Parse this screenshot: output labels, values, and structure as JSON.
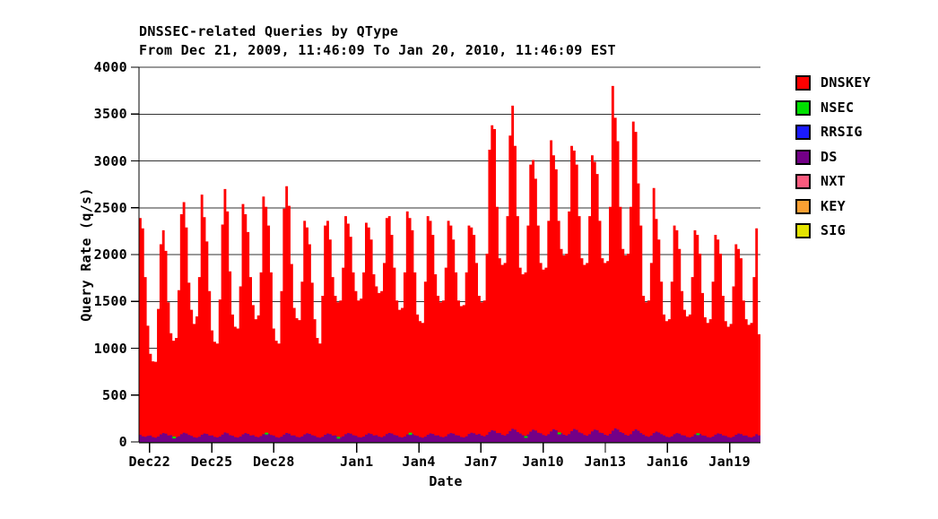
{
  "chart_data": {
    "type": "area",
    "stacked": true,
    "title": "DNSSEC-related Queries by QType",
    "subtitle": "From Dec 21, 2009, 11:46:09 To Jan 20, 2010, 11:46:09 EST",
    "xlabel": "Date",
    "ylabel": "Query Rate (q/s)",
    "ylim": [
      0,
      4000
    ],
    "y_ticks": [
      0,
      500,
      1000,
      1500,
      2000,
      2500,
      3000,
      3500,
      4000
    ],
    "grid": true,
    "grid_color": "#333333",
    "axis_color": "#000000",
    "legend_position": "right",
    "total_days": 30,
    "sample_interval_hours": 3,
    "x_ticks": [
      {
        "label": "Dec22",
        "day_offset": 0.51
      },
      {
        "label": "Dec25",
        "day_offset": 3.51
      },
      {
        "label": "Dec28",
        "day_offset": 6.51
      },
      {
        "label": "Jan1",
        "day_offset": 10.51
      },
      {
        "label": "Jan4",
        "day_offset": 13.51
      },
      {
        "label": "Jan7",
        "day_offset": 16.51
      },
      {
        "label": "Jan10",
        "day_offset": 19.51
      },
      {
        "label": "Jan13",
        "day_offset": 22.51
      },
      {
        "label": "Jan16",
        "day_offset": 25.51
      },
      {
        "label": "Jan19",
        "day_offset": 28.51
      }
    ],
    "series": [
      {
        "name": "DNSKEY",
        "color": "#ff0000",
        "approx_top_q_s": [
          2390,
          2280,
          1760,
          1240,
          940,
          860,
          855,
          1420,
          2110,
          2260,
          2040,
          1490,
          1160,
          1080,
          1110,
          1620,
          2430,
          2560,
          2290,
          1700,
          1410,
          1260,
          1340,
          1760,
          2640,
          2400,
          2140,
          1610,
          1190,
          1070,
          1050,
          1520,
          2320,
          2700,
          2460,
          1820,
          1360,
          1230,
          1210,
          1660,
          2540,
          2430,
          2240,
          1760,
          1460,
          1310,
          1350,
          1810,
          2620,
          2510,
          2310,
          1810,
          1210,
          1080,
          1050,
          1610,
          2490,
          2730,
          2520,
          1900,
          1430,
          1320,
          1300,
          1710,
          2360,
          2290,
          2110,
          1700,
          1310,
          1110,
          1050,
          1560,
          2310,
          2360,
          2160,
          1760,
          1560,
          1490,
          1510,
          1860,
          2410,
          2330,
          2190,
          1810,
          1610,
          1510,
          1530,
          1810,
          2340,
          2290,
          2160,
          1790,
          1660,
          1590,
          1610,
          1910,
          2390,
          2410,
          2210,
          1860,
          1510,
          1410,
          1430,
          1810,
          2460,
          2390,
          2260,
          1810,
          1360,
          1290,
          1270,
          1710,
          2410,
          2360,
          2210,
          1790,
          1560,
          1490,
          1510,
          1860,
          2360,
          2310,
          2160,
          1810,
          1510,
          1450,
          1460,
          1810,
          2310,
          2290,
          2210,
          1910,
          1560,
          1490,
          1510,
          2010,
          3120,
          3380,
          3340,
          2510,
          1960,
          1890,
          1910,
          2410,
          3270,
          3590,
          3160,
          2410,
          1860,
          1790,
          1810,
          2310,
          2960,
          3010,
          2810,
          2310,
          1910,
          1840,
          1860,
          2360,
          3220,
          3060,
          2910,
          2360,
          2060,
          1990,
          2010,
          2460,
          3160,
          3110,
          2960,
          2410,
          1960,
          1890,
          1910,
          2410,
          3060,
          2990,
          2860,
          2360,
          1960,
          1910,
          1930,
          2510,
          3800,
          3460,
          3210,
          2510,
          2060,
          1990,
          2010,
          2510,
          3420,
          3310,
          2760,
          2310,
          1560,
          1490,
          1510,
          1910,
          2710,
          2380,
          2160,
          1710,
          1360,
          1290,
          1310,
          1710,
          2310,
          2260,
          2060,
          1610,
          1410,
          1340,
          1360,
          1760,
          2260,
          2210,
          2010,
          1590,
          1330,
          1270,
          1310,
          1710,
          2210,
          2160,
          2010,
          1560,
          1290,
          1230,
          1260,
          1660,
          2110,
          2060,
          1960,
          1510,
          1310,
          1250,
          1270,
          1760,
          2280,
          1150
        ]
      },
      {
        "name": "NSEC",
        "color": "#00e000",
        "sparse_spikes": [
          [
            13,
            22
          ],
          [
            49,
            20
          ],
          [
            77,
            18
          ],
          [
            105,
            24
          ],
          [
            150,
            16
          ],
          [
            163,
            20
          ],
          [
            217,
            18
          ]
        ]
      },
      {
        "name": "RRSIG",
        "color": "#1a1aff",
        "approx_top_q_s": []
      },
      {
        "name": "DS",
        "color": "#730087",
        "approx_top_q_s": [
          75,
          60,
          55,
          65,
          68,
          52,
          46,
          58,
          80,
          95,
          88,
          70,
          72,
          55,
          50,
          60,
          82,
          98,
          90,
          74,
          65,
          50,
          45,
          55,
          76,
          90,
          85,
          68,
          70,
          54,
          48,
          58,
          78,
          100,
          92,
          72,
          66,
          52,
          47,
          57,
          80,
          94,
          86,
          70,
          72,
          56,
          50,
          62,
          84,
          98,
          90,
          74,
          68,
          52,
          46,
          56,
          78,
          96,
          88,
          70,
          70,
          54,
          49,
          59,
          80,
          92,
          86,
          72,
          64,
          50,
          45,
          55,
          76,
          90,
          84,
          68,
          70,
          55,
          50,
          60,
          82,
          95,
          88,
          72,
          66,
          52,
          48,
          58,
          78,
          92,
          85,
          70,
          72,
          56,
          50,
          62,
          84,
          96,
          90,
          74,
          68,
          53,
          48,
          58,
          80,
          94,
          87,
          71,
          65,
          51,
          46,
          56,
          77,
          91,
          85,
          69,
          70,
          55,
          50,
          60,
          82,
          95,
          88,
          72,
          68,
          53,
          48,
          60,
          85,
          98,
          92,
          78,
          85,
          68,
          60,
          75,
          105,
          125,
          118,
          95,
          95,
          75,
          68,
          85,
          115,
          140,
          130,
          105,
          90,
          72,
          65,
          80,
          110,
          130,
          122,
          98,
          92,
          74,
          66,
          82,
          112,
          135,
          125,
          100,
          95,
          76,
          68,
          84,
          115,
          138,
          128,
          102,
          92,
          74,
          66,
          82,
          112,
          132,
          124,
          99,
          95,
          76,
          68,
          86,
          120,
          145,
          132,
          105,
          95,
          75,
          67,
          83,
          115,
          135,
          120,
          95,
          78,
          62,
          55,
          68,
          95,
          110,
          100,
          82,
          70,
          55,
          50,
          60,
          82,
          95,
          88,
          72,
          68,
          53,
          48,
          58,
          80,
          93,
          86,
          70,
          66,
          52,
          47,
          57,
          78,
          91,
          85,
          69,
          65,
          51,
          46,
          56,
          77,
          90,
          84,
          68,
          68,
          53,
          48,
          60,
          82,
          70
        ]
      },
      {
        "name": "NXT",
        "color": "#fa5b7e",
        "approx_top_q_s": []
      },
      {
        "name": "KEY",
        "color": "#faa032",
        "approx_top_q_s": []
      },
      {
        "name": "SIG",
        "color": "#e3e300",
        "approx_top_q_s": []
      }
    ]
  }
}
